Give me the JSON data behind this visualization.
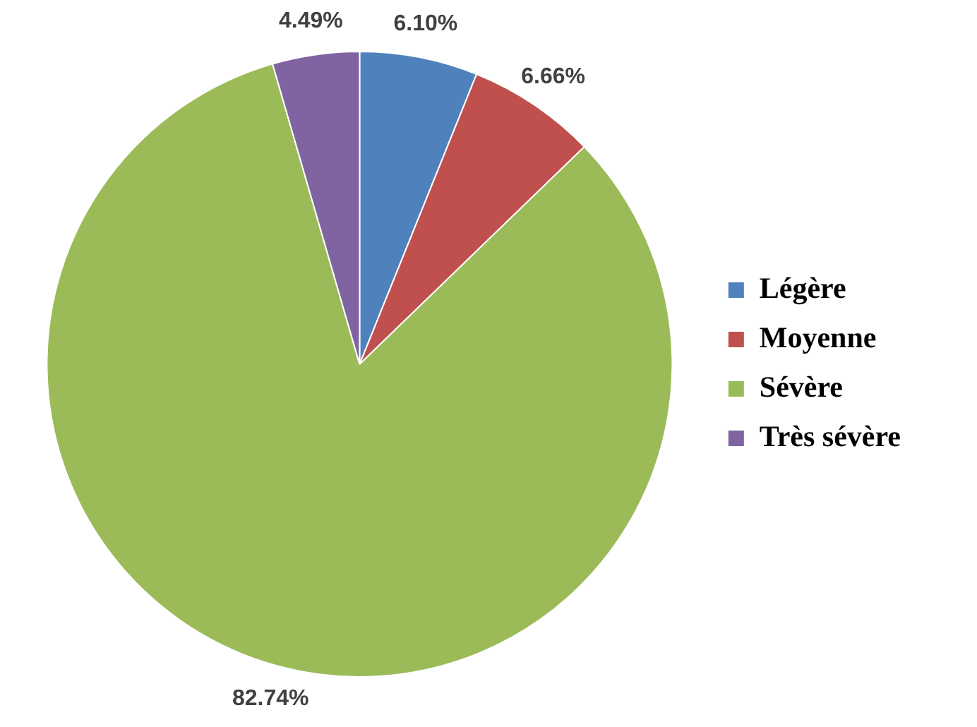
{
  "chart_data": {
    "type": "pie",
    "categories": [
      "Légère",
      "Moyenne",
      "Sévère",
      "Très sévère"
    ],
    "values": [
      6.1,
      6.66,
      82.74,
      4.49
    ],
    "colors": [
      "#4f81bd",
      "#c0504d",
      "#9bbb59",
      "#8064a2"
    ],
    "value_labels": [
      "6.10%",
      "6.66%",
      "82.74%",
      "4.49%"
    ],
    "legend": "right"
  }
}
